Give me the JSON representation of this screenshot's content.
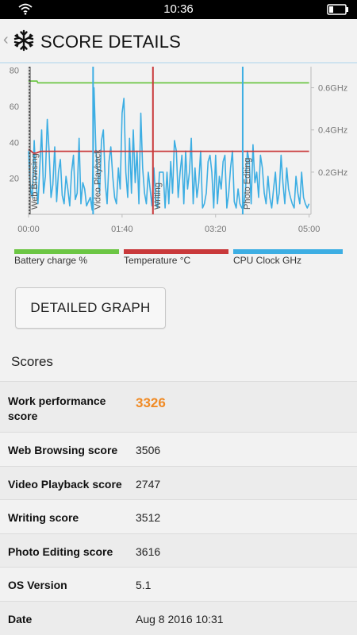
{
  "status_bar": {
    "time": "10:36"
  },
  "header": {
    "back_glyph": "‹",
    "title": "SCORE DETAILS",
    "icon": "snowflake-icon"
  },
  "chart_data": {
    "type": "line",
    "x_ticks": [
      "00:00",
      "01:40",
      "03:20",
      "05:00"
    ],
    "y_left_ticks": [
      "80",
      "60",
      "40",
      "20"
    ],
    "y_right_ticks": [
      "0.6GHz",
      "0.4GHz",
      "0.2GHz"
    ],
    "ylim_left": [
      0,
      82
    ],
    "xlim_minutes": [
      0,
      302
    ],
    "ylim_right_ghz": [
      0,
      0.7
    ],
    "markers": [
      {
        "label": "Web Browsing",
        "at_minutes": 0
      },
      {
        "label": "Video Playback",
        "at_minutes": 69
      },
      {
        "label": "Writing",
        "at_minutes": 133
      },
      {
        "label": "Photo Editing",
        "at_minutes": 229
      }
    ],
    "series": [
      {
        "name": "Battery charge %",
        "color": "#6cc644",
        "x_minutes": [
          0,
          9,
          10,
          33,
          34,
          300
        ],
        "values": [
          74,
          74,
          73,
          73,
          73,
          73
        ]
      },
      {
        "name": "Temperature °C",
        "color": "#c9393b",
        "x_minutes": [
          0,
          3,
          5,
          8,
          13,
          300
        ],
        "values": [
          36,
          35,
          34,
          34,
          35,
          35
        ]
      },
      {
        "name": "CPU Clock GHz",
        "color": "#3daee3",
        "x_minutes": [
          0,
          2,
          4,
          6,
          8,
          10,
          12,
          14,
          16,
          18,
          20,
          22,
          24,
          26,
          28,
          30,
          32,
          34,
          36,
          38,
          40,
          42,
          44,
          46,
          48,
          50,
          52,
          54,
          56,
          58,
          60,
          62,
          64,
          66,
          68,
          70,
          72,
          74,
          76,
          78,
          80,
          82,
          84,
          86,
          88,
          90,
          92,
          94,
          96,
          98,
          100,
          102,
          104,
          106,
          108,
          110,
          112,
          114,
          116,
          118,
          120,
          122,
          124,
          126,
          128,
          130,
          132,
          134,
          136,
          138,
          140,
          142,
          144,
          146,
          148,
          150,
          152,
          154,
          156,
          158,
          160,
          162,
          164,
          166,
          168,
          170,
          172,
          174,
          176,
          178,
          180,
          182,
          184,
          186,
          188,
          190,
          192,
          194,
          196,
          198,
          200,
          202,
          204,
          206,
          208,
          210,
          212,
          214,
          216,
          218,
          220,
          222,
          224,
          226,
          228,
          230,
          232,
          234,
          236,
          238,
          240,
          242,
          244,
          246,
          248,
          250,
          252,
          254,
          256,
          258,
          260,
          262,
          264,
          266,
          268,
          270,
          272,
          274,
          276,
          278,
          280,
          282,
          284,
          286,
          288,
          290,
          292,
          294,
          296,
          298,
          300
        ],
        "values": [
          0.3,
          0.12,
          0.08,
          0.35,
          0.15,
          0.05,
          0.22,
          0.4,
          0.1,
          0.18,
          0.45,
          0.3,
          0.08,
          0.14,
          0.32,
          0.06,
          0.2,
          0.26,
          0.09,
          0.05,
          0.18,
          0.12,
          0.04,
          0.2,
          0.28,
          0.07,
          0.1,
          0.36,
          0.05,
          0.15,
          0.12,
          0.04,
          0.06,
          0.08,
          0.02,
          0.6,
          0.3,
          0.2,
          0.1,
          0.35,
          0.4,
          0.15,
          0.05,
          0.25,
          0.32,
          0.18,
          0.08,
          0.05,
          0.22,
          0.12,
          0.48,
          0.55,
          0.2,
          0.08,
          0.36,
          0.1,
          0.4,
          0.15,
          0.3,
          0.05,
          0.48,
          0.22,
          0.1,
          0.05,
          0.2,
          0.12,
          0.04,
          0.22,
          0.05,
          0.03,
          0.2,
          0.2,
          0.2,
          0.03,
          0.2,
          0.05,
          0.25,
          0.1,
          0.35,
          0.3,
          0.08,
          0.2,
          0.28,
          0.05,
          0.3,
          0.12,
          0.2,
          0.36,
          0.05,
          0.22,
          0.08,
          0.15,
          0.3,
          0.03,
          0.05,
          0.1,
          0.25,
          0.28,
          0.2,
          0.03,
          0.28,
          0.05,
          0.18,
          0.12,
          0.25,
          0.28,
          0.03,
          0.1,
          0.22,
          0.3,
          0.06,
          0.03,
          0.12,
          0.05,
          0.03,
          0.03,
          0.12,
          0.3,
          0.25,
          0.05,
          0.33,
          0.15,
          0.2,
          0.08,
          0.28,
          0.22,
          0.1,
          0.05,
          0.18,
          0.08,
          0.03,
          0.12,
          0.2,
          0.05,
          0.1,
          0.28,
          0.15,
          0.05,
          0.22,
          0.12,
          0.08,
          0.05,
          0.03,
          0.18,
          0.1,
          0.05,
          0.2,
          0.08,
          0.05,
          0.03,
          0.05
        ]
      }
    ]
  },
  "legend": [
    {
      "label": "Battery charge %",
      "color": "#6cc644"
    },
    {
      "label": "Temperature °C",
      "color": "#c9393b"
    },
    {
      "label": "CPU Clock GHz",
      "color": "#3daee3"
    }
  ],
  "detailed_graph_button": "DETAILED GRAPH",
  "scores": {
    "heading": "Scores",
    "rows": [
      {
        "label": "Work performance score",
        "value": "3326"
      },
      {
        "label": "Web Browsing score",
        "value": "3506"
      },
      {
        "label": "Video Playback score",
        "value": "2747"
      },
      {
        "label": "Writing score",
        "value": "3512"
      },
      {
        "label": "Photo Editing score",
        "value": "3616"
      },
      {
        "label": "OS Version",
        "value": "5.1"
      },
      {
        "label": "Date",
        "value": "Aug 8 2016 10:31"
      }
    ]
  }
}
